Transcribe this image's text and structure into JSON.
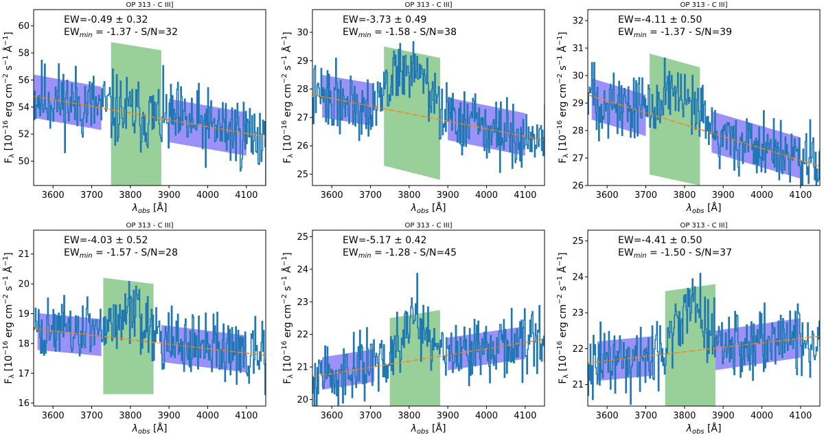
{
  "chart_data": [
    {
      "type": "line",
      "title": "OP 313 - C III]",
      "xlabel": "λ",
      "xlabel_sub": "obs",
      "xlabel_unit": " [Å]",
      "ylabel_prefix": "F",
      "ylabel_sub": "λ",
      "ylabel_mid": " [10",
      "ylabel_exp1": "−16",
      "ylabel_unit_a": " erg cm",
      "ylabel_exp2": "−2",
      "ylabel_unit_b": " s",
      "ylabel_exp3": "−1",
      "ylabel_unit_c": " Å",
      "ylabel_exp4": "−1",
      "ylabel_end": "]",
      "xlim": [
        3550,
        4150
      ],
      "ylim": [
        48.2,
        61.2
      ],
      "xticks": [
        "3600",
        "3700",
        "3800",
        "3900",
        "4000",
        "4100"
      ],
      "yticks": [
        "50",
        "52",
        "54",
        "56",
        "58",
        "60"
      ],
      "annotation_ew_label": "EW=",
      "annotation_ew_value": "-0.49 ± 0.32",
      "annotation_min_label": "EW",
      "annotation_min_sub": "min",
      "annotation_min_value": " = -1.37 - S/N=32",
      "continuum_fit": {
        "x": [
          3550,
          4150
        ],
        "y": [
          54.8,
          51.8
        ]
      },
      "continuum_band_left": {
        "x": [
          3550,
          3725
        ],
        "center": [
          54.8,
          53.9
        ],
        "halfwidth": 1.6
      },
      "continuum_band_right": {
        "x": [
          3900,
          4100
        ],
        "center": [
          53.0,
          52.0
        ],
        "halfwidth": 1.6
      },
      "line_window": {
        "x": [
          3750,
          3880
        ],
        "top": [
          58.8,
          58.2
        ],
        "bottom": [
          48.2,
          48.2
        ]
      },
      "series": [
        {
          "name": "spectrum",
          "x_start": 3550,
          "x_end": 4150,
          "noise": 2.2,
          "seed": 11,
          "features": []
        }
      ]
    },
    {
      "type": "line",
      "title": "OP 313 - C III]",
      "xlabel": "λ",
      "xlabel_sub": "obs",
      "xlabel_unit": " [Å]",
      "ylabel_prefix": "F",
      "ylabel_sub": "λ",
      "ylabel_mid": " [10",
      "ylabel_exp1": "−16",
      "ylabel_unit_a": " erg cm",
      "ylabel_exp2": "−2",
      "ylabel_unit_b": " s",
      "ylabel_exp3": "−1",
      "ylabel_unit_c": " Å",
      "ylabel_exp4": "−1",
      "ylabel_end": "]",
      "xlim": [
        3550,
        4150
      ],
      "ylim": [
        24.6,
        30.8
      ],
      "xticks": [
        "3600",
        "3700",
        "3800",
        "3900",
        "4000",
        "4100"
      ],
      "yticks": [
        "25",
        "26",
        "27",
        "28",
        "29",
        "30"
      ],
      "annotation_ew_label": "EW=",
      "annotation_ew_value": "-3.73 ± 0.49",
      "annotation_min_label": "EW",
      "annotation_min_sub": "min",
      "annotation_min_value": " = -1.58 - S/N=38",
      "continuum_fit": {
        "x": [
          3550,
          4150
        ],
        "y": [
          27.8,
          26.2
        ]
      },
      "continuum_band_left": {
        "x": [
          3575,
          3705
        ],
        "center": [
          27.75,
          27.45
        ],
        "halfwidth": 0.75
      },
      "continuum_band_right": {
        "x": [
          3900,
          4100
        ],
        "center": [
          26.95,
          26.4
        ],
        "halfwidth": 0.75
      },
      "line_window": {
        "x": [
          3735,
          3880
        ],
        "top": [
          29.5,
          29.1
        ],
        "bottom": [
          25.3,
          24.8
        ]
      },
      "series": [
        {
          "name": "spectrum",
          "x_start": 3550,
          "x_end": 4150,
          "noise": 0.9,
          "seed": 22,
          "features": [
            {
              "center": 3800,
              "width": 45,
              "amp": 1.7
            }
          ]
        }
      ]
    },
    {
      "type": "line",
      "title": "OP 313 - C III]",
      "xlabel": "λ",
      "xlabel_sub": "obs",
      "xlabel_unit": " [Å]",
      "ylabel_prefix": "F",
      "ylabel_sub": "λ",
      "ylabel_mid": " [10",
      "ylabel_exp1": "−16",
      "ylabel_unit_a": " erg cm",
      "ylabel_exp2": "−2",
      "ylabel_unit_b": " s",
      "ylabel_exp3": "−1",
      "ylabel_unit_c": " Å",
      "ylabel_exp4": "−1",
      "ylabel_end": "]",
      "xlim": [
        3550,
        4150
      ],
      "ylim": [
        26.0,
        32.4
      ],
      "xticks": [
        "3600",
        "3700",
        "3800",
        "3900",
        "4000",
        "4100"
      ],
      "yticks": [
        "26",
        "27",
        "28",
        "29",
        "30",
        "31",
        "32"
      ],
      "annotation_ew_label": "EW=",
      "annotation_ew_value": "-4.11 ± 0.50",
      "annotation_min_label": "EW",
      "annotation_min_sub": "min",
      "annotation_min_value": " = -1.37 - S/N=39",
      "continuum_fit": {
        "x": [
          3550,
          4150
        ],
        "y": [
          29.3,
          26.7
        ]
      },
      "continuum_band_left": {
        "x": [
          3560,
          3700
        ],
        "center": [
          29.15,
          28.55
        ],
        "halfwidth": 0.75
      },
      "continuum_band_right": {
        "x": [
          3870,
          4100
        ],
        "center": [
          27.95,
          27.0
        ],
        "halfwidth": 0.75
      },
      "line_window": {
        "x": [
          3710,
          3840
        ],
        "top": [
          30.8,
          30.3
        ],
        "bottom": [
          26.4,
          26.0
        ]
      },
      "series": [
        {
          "name": "spectrum",
          "x_start": 3550,
          "x_end": 4150,
          "noise": 1.0,
          "seed": 33,
          "features": [
            {
              "center": 3770,
              "width": 45,
              "amp": 1.0
            }
          ]
        }
      ]
    },
    {
      "type": "line",
      "title": "OP 313 - C III]",
      "xlabel": "λ",
      "xlabel_sub": "obs",
      "xlabel_unit": " [Å]",
      "ylabel_prefix": "F",
      "ylabel_sub": "λ",
      "ylabel_mid": " [10",
      "ylabel_exp1": "−16",
      "ylabel_unit_a": " erg cm",
      "ylabel_exp2": "−2",
      "ylabel_unit_b": " s",
      "ylabel_exp3": "−1",
      "ylabel_unit_c": " Å",
      "ylabel_exp4": "−1",
      "ylabel_end": "]",
      "xlim": [
        3550,
        4150
      ],
      "ylim": [
        15.9,
        21.8
      ],
      "xticks": [
        "3600",
        "3700",
        "3800",
        "3900",
        "4000",
        "4100"
      ],
      "yticks": [
        "16",
        "17",
        "18",
        "19",
        "20",
        "21"
      ],
      "annotation_ew_label": "EW=",
      "annotation_ew_value": "-4.03 ± 0.52",
      "annotation_min_label": "EW",
      "annotation_min_sub": "min",
      "annotation_min_value": " = -1.57 - S/N=28",
      "continuum_fit": {
        "x": [
          3550,
          4150
        ],
        "y": [
          18.5,
          17.6
        ]
      },
      "continuum_band_left": {
        "x": [
          3560,
          3725
        ],
        "center": [
          18.4,
          18.2
        ],
        "halfwidth": 0.62
      },
      "continuum_band_right": {
        "x": [
          3880,
          4100
        ],
        "center": [
          18.0,
          17.65
        ],
        "halfwidth": 0.62
      },
      "line_window": {
        "x": [
          3730,
          3860
        ],
        "top": [
          20.2,
          20.0
        ],
        "bottom": [
          16.3,
          16.3
        ]
      },
      "series": [
        {
          "name": "spectrum",
          "x_start": 3550,
          "x_end": 4150,
          "noise": 0.85,
          "seed": 44,
          "features": [
            {
              "center": 3790,
              "width": 50,
              "amp": 0.8
            }
          ]
        }
      ]
    },
    {
      "type": "line",
      "title": "OP 313 - C III]",
      "xlabel": "λ",
      "xlabel_sub": "obs",
      "xlabel_unit": " [Å]",
      "ylabel_prefix": "F",
      "ylabel_sub": "λ",
      "ylabel_mid": " [10",
      "ylabel_exp1": "−16",
      "ylabel_unit_a": " erg cm",
      "ylabel_exp2": "−2",
      "ylabel_unit_b": " s",
      "ylabel_exp3": "−1",
      "ylabel_unit_c": " Å",
      "ylabel_exp4": "−1",
      "ylabel_end": "]",
      "xlim": [
        3550,
        4150
      ],
      "ylim": [
        19.8,
        25.2
      ],
      "xticks": [
        "3600",
        "3700",
        "3800",
        "3900",
        "4000",
        "4100"
      ],
      "yticks": [
        "20",
        "21",
        "22",
        "23",
        "24",
        "25"
      ],
      "annotation_ew_label": "EW=",
      "annotation_ew_value": "-5.17 ± 0.42",
      "annotation_min_label": "EW",
      "annotation_min_sub": "min",
      "annotation_min_value": " = -1.28 - S/N=45",
      "continuum_fit": {
        "x": [
          3550,
          4150
        ],
        "y": [
          20.7,
          21.85
        ]
      },
      "continuum_band_left": {
        "x": [
          3575,
          3710
        ],
        "center": [
          20.8,
          21.05
        ],
        "halfwidth": 0.5
      },
      "continuum_band_right": {
        "x": [
          3900,
          4100
        ],
        "center": [
          21.4,
          21.75
        ],
        "halfwidth": 0.5
      },
      "line_window": {
        "x": [
          3750,
          3880
        ],
        "top": [
          22.5,
          22.75
        ],
        "bottom": [
          19.8,
          19.8
        ]
      },
      "series": [
        {
          "name": "spectrum",
          "x_start": 3550,
          "x_end": 4150,
          "noise": 0.8,
          "seed": 55,
          "features": [
            {
              "center": 3815,
              "width": 35,
              "amp": 1.4
            }
          ]
        }
      ]
    },
    {
      "type": "line",
      "title": "OP 313 - C III]",
      "xlabel": "λ",
      "xlabel_sub": "obs",
      "xlabel_unit": " [Å]",
      "ylabel_prefix": "F",
      "ylabel_sub": "λ",
      "ylabel_mid": " [10",
      "ylabel_exp1": "−16",
      "ylabel_unit_a": " erg cm",
      "ylabel_exp2": "−2",
      "ylabel_unit_b": " s",
      "ylabel_exp3": "−1",
      "ylabel_unit_c": " Å",
      "ylabel_exp4": "−1",
      "ylabel_end": "]",
      "xlim": [
        3550,
        4150
      ],
      "ylim": [
        20.4,
        25.3
      ],
      "xticks": [
        "3600",
        "3700",
        "3800",
        "3900",
        "4000",
        "4100"
      ],
      "yticks": [
        "21",
        "22",
        "23",
        "24",
        "25"
      ],
      "annotation_ew_label": "EW=",
      "annotation_ew_value": "-4.41 ± 0.50",
      "annotation_min_label": "EW",
      "annotation_min_sub": "min",
      "annotation_min_value": " = -1.50 - S/N=37",
      "continuum_fit": {
        "x": [
          3550,
          4150
        ],
        "y": [
          21.6,
          22.35
        ]
      },
      "continuum_band_left": {
        "x": [
          3575,
          3720
        ],
        "center": [
          21.65,
          21.8
        ],
        "halfwidth": 0.55
      },
      "continuum_band_right": {
        "x": [
          3880,
          4100
        ],
        "center": [
          21.95,
          22.3
        ],
        "halfwidth": 0.55
      },
      "line_window": {
        "x": [
          3750,
          3880
        ],
        "top": [
          23.6,
          23.8
        ],
        "bottom": [
          20.4,
          20.4
        ]
      },
      "series": [
        {
          "name": "spectrum",
          "x_start": 3550,
          "x_end": 4150,
          "noise": 0.75,
          "seed": 66,
          "features": [
            {
              "center": 3815,
              "width": 40,
              "amp": 1.2
            }
          ]
        }
      ]
    }
  ],
  "colors": {
    "spectrum": "#1f77b4",
    "fit": "#ff7f0e",
    "continuum_band": "#7b6cf6",
    "line_window": "#7fc47f"
  }
}
